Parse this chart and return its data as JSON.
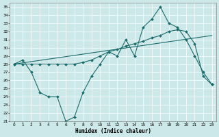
{
  "xlabel": "Humidex (Indice chaleur)",
  "bg_color": "#cde8e8",
  "grid_color": "#b8d8d8",
  "line_color": "#1a6b6b",
  "xlim": [
    -0.5,
    23.5
  ],
  "ylim": [
    21,
    35.5
  ],
  "xticks": [
    0,
    1,
    2,
    3,
    4,
    5,
    6,
    7,
    8,
    9,
    10,
    11,
    12,
    13,
    14,
    15,
    16,
    17,
    18,
    19,
    20,
    21,
    22,
    23
  ],
  "yticks": [
    21,
    22,
    23,
    24,
    25,
    26,
    27,
    28,
    29,
    30,
    31,
    32,
    33,
    34,
    35
  ],
  "line1_x": [
    0,
    1,
    2,
    3,
    4,
    5,
    6,
    7,
    8,
    9,
    10,
    11,
    12,
    13,
    14,
    15,
    16,
    17,
    18,
    19,
    20,
    21,
    22,
    23
  ],
  "line1_y": [
    28.0,
    28.5,
    27.0,
    24.5,
    24.0,
    24.0,
    21.0,
    21.5,
    24.5,
    26.5,
    28.0,
    29.5,
    29.0,
    31.0,
    29.0,
    32.5,
    33.5,
    35.0,
    33.0,
    32.5,
    31.0,
    29.0,
    27.0,
    25.5
  ],
  "line2_x": [
    0,
    23
  ],
  "line2_y": [
    28.0,
    31.5
  ],
  "line3_x": [
    0,
    1,
    2,
    3,
    4,
    5,
    6,
    7,
    8,
    9,
    10,
    11,
    12,
    13,
    14,
    15,
    16,
    17,
    18,
    19,
    20,
    21,
    22,
    23
  ],
  "line3_y": [
    28.0,
    28.0,
    28.0,
    28.0,
    28.0,
    28.0,
    28.0,
    28.0,
    28.2,
    28.5,
    29.0,
    29.5,
    29.8,
    30.2,
    30.5,
    30.8,
    31.2,
    31.5,
    32.0,
    32.2,
    32.0,
    30.5,
    26.5,
    25.5
  ],
  "line1_markers": true,
  "line3_markers": false
}
